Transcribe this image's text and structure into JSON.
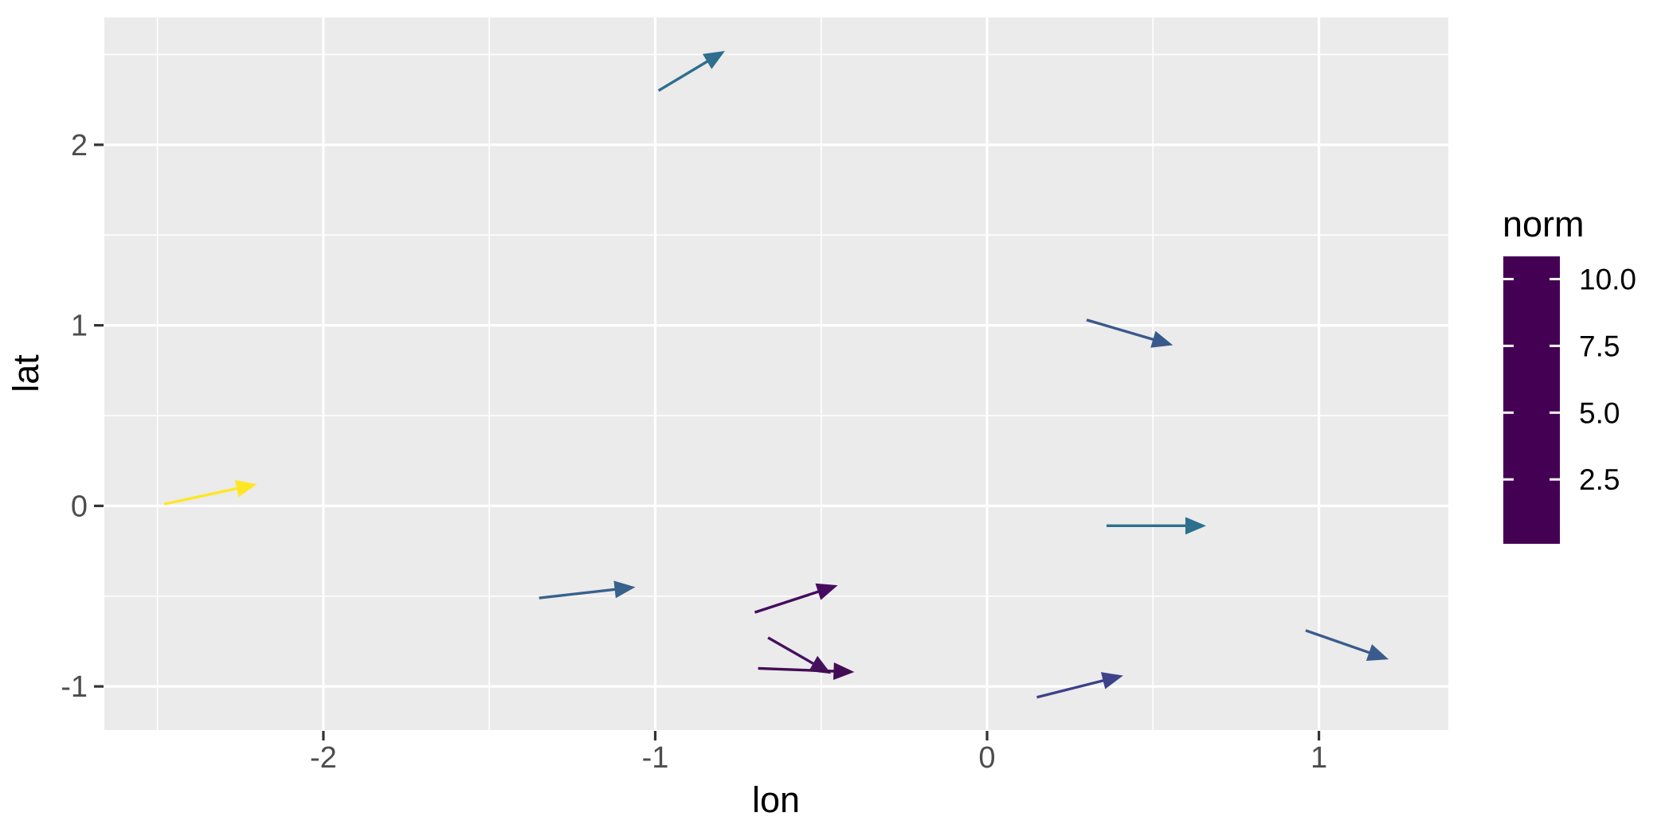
{
  "chart_data": {
    "type": "quiver",
    "title": "",
    "xlabel": "lon",
    "ylabel": "lat",
    "xlim": [
      -2.66,
      1.39
    ],
    "ylim": [
      -1.242,
      2.705
    ],
    "x_ticks": [
      {
        "value": -2,
        "label": "-2"
      },
      {
        "value": -1,
        "label": "-1"
      },
      {
        "value": 0,
        "label": "0"
      },
      {
        "value": 1,
        "label": "1"
      }
    ],
    "y_ticks": [
      {
        "value": -1,
        "label": "-1"
      },
      {
        "value": 0,
        "label": "0"
      },
      {
        "value": 1,
        "label": "1"
      },
      {
        "value": 2,
        "label": "2"
      }
    ],
    "x_minor_ticks": [
      -2.5,
      -1.5,
      -0.5,
      0.5
    ],
    "y_minor_ticks": [
      -0.5,
      0.5,
      1.5,
      2.5
    ],
    "grid": {
      "major": true,
      "minor": true
    },
    "panel_bg": "#EBEBEB",
    "grid_color": "#FFFFFF",
    "tick_color": "#333333",
    "tick_label_color": "#4D4D4D",
    "axis_title_color": "#000000",
    "legend_text_color": "#000000",
    "arrows": [
      {
        "x": -0.99,
        "y": 2.3,
        "xend": -0.79,
        "yend": 2.52,
        "norm": 4.6,
        "color": "#2E6E8E"
      },
      {
        "x": 0.3,
        "y": 1.03,
        "xend": 0.56,
        "yend": 0.89,
        "norm": 3.5,
        "color": "#39598C"
      },
      {
        "x": -2.48,
        "y": 0.01,
        "xend": -2.2,
        "yend": 0.12,
        "norm": 10.8,
        "color": "#FDE725"
      },
      {
        "x": 0.36,
        "y": -0.11,
        "xend": 0.66,
        "yend": -0.11,
        "norm": 4.7,
        "color": "#2C708E"
      },
      {
        "x": -1.35,
        "y": -0.51,
        "xend": -1.06,
        "yend": -0.45,
        "norm": 3.6,
        "color": "#38618C"
      },
      {
        "x": -0.7,
        "y": -0.59,
        "xend": -0.45,
        "yend": -0.44,
        "norm": 0.9,
        "color": "#460B5E"
      },
      {
        "x": -0.66,
        "y": -0.73,
        "xend": -0.47,
        "yend": -0.93,
        "norm": 1.1,
        "color": "#46105F"
      },
      {
        "x": -0.69,
        "y": -0.9,
        "xend": -0.4,
        "yend": -0.92,
        "norm": 0.7,
        "color": "#440C54"
      },
      {
        "x": 0.15,
        "y": -1.06,
        "xend": 0.41,
        "yend": -0.94,
        "norm": 2.1,
        "color": "#3E4289"
      },
      {
        "x": 0.96,
        "y": -0.69,
        "xend": 1.21,
        "yend": -0.85,
        "norm": 3.4,
        "color": "#3A5C8C"
      }
    ],
    "legend": {
      "title": "norm",
      "position": "right",
      "range": [
        0.09,
        10.85
      ],
      "tick_values": [
        10.0,
        7.5,
        5.0,
        2.5
      ],
      "tick_labels": [
        "10.0",
        "7.5",
        "5.0",
        "2.5"
      ],
      "colormap": "viridis",
      "colormap_stops": [
        {
          "value": 0.09,
          "color": "#440154"
        },
        {
          "value": 1.435,
          "color": "#472D7B"
        },
        {
          "value": 2.78,
          "color": "#3B528B"
        },
        {
          "value": 4.125,
          "color": "#2C728E"
        },
        {
          "value": 5.47,
          "color": "#21918C"
        },
        {
          "value": 6.815,
          "color": "#27AD81"
        },
        {
          "value": 8.16,
          "color": "#5EC962"
        },
        {
          "value": 9.505,
          "color": "#AADC32"
        },
        {
          "value": 10.85,
          "color": "#FDE725"
        }
      ]
    }
  }
}
